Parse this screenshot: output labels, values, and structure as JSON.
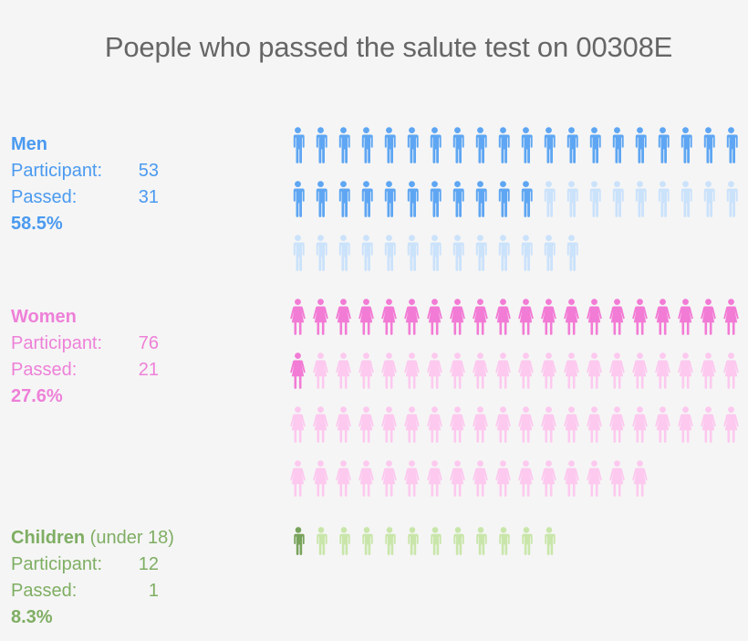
{
  "title": "Poeple who passed the salute test on 00308E",
  "groups": {
    "men": {
      "name": "Men",
      "name_suffix": "",
      "participant_label": "Participant:",
      "participant": 53,
      "passed_label": "Passed:",
      "passed": 31,
      "percent": "58.5%",
      "text_color": "#4a9af0",
      "passed_color": "#5ea6f3",
      "failed_color": "#cbe2fb",
      "icon": "man-icon"
    },
    "women": {
      "name": "Women",
      "name_suffix": "",
      "participant_label": "Participant:",
      "participant": 76,
      "passed_label": "Passed:",
      "passed": 21,
      "percent": "27.6%",
      "text_color": "#ee80d8",
      "passed_color": "#f27bd5",
      "failed_color": "#fdc9ef",
      "icon": "woman-icon"
    },
    "children": {
      "name": "Children",
      "name_suffix": " (under 18)",
      "participant_label": "Participant:",
      "participant": 12,
      "passed_label": "Passed:",
      "passed": 1,
      "percent": "8.3%",
      "text_color": "#7fae63",
      "passed_color": "#78a35c",
      "failed_color": "#c9e6aa",
      "icon": "child-icon"
    }
  },
  "chart_data": {
    "type": "pictograph",
    "title": "Poeple who passed the salute test on 00308E",
    "icons_per_row": 20,
    "categories": [
      "Men",
      "Women",
      "Children (under 18)"
    ],
    "series": [
      {
        "name": "Participant",
        "values": [
          53,
          76,
          12
        ]
      },
      {
        "name": "Passed",
        "values": [
          31,
          21,
          1
        ]
      },
      {
        "name": "Pass rate (%)",
        "values": [
          58.5,
          27.6,
          8.3
        ]
      }
    ],
    "legend": "none",
    "encoding": "one icon per person; dark icon = passed, light icon = did not pass"
  }
}
